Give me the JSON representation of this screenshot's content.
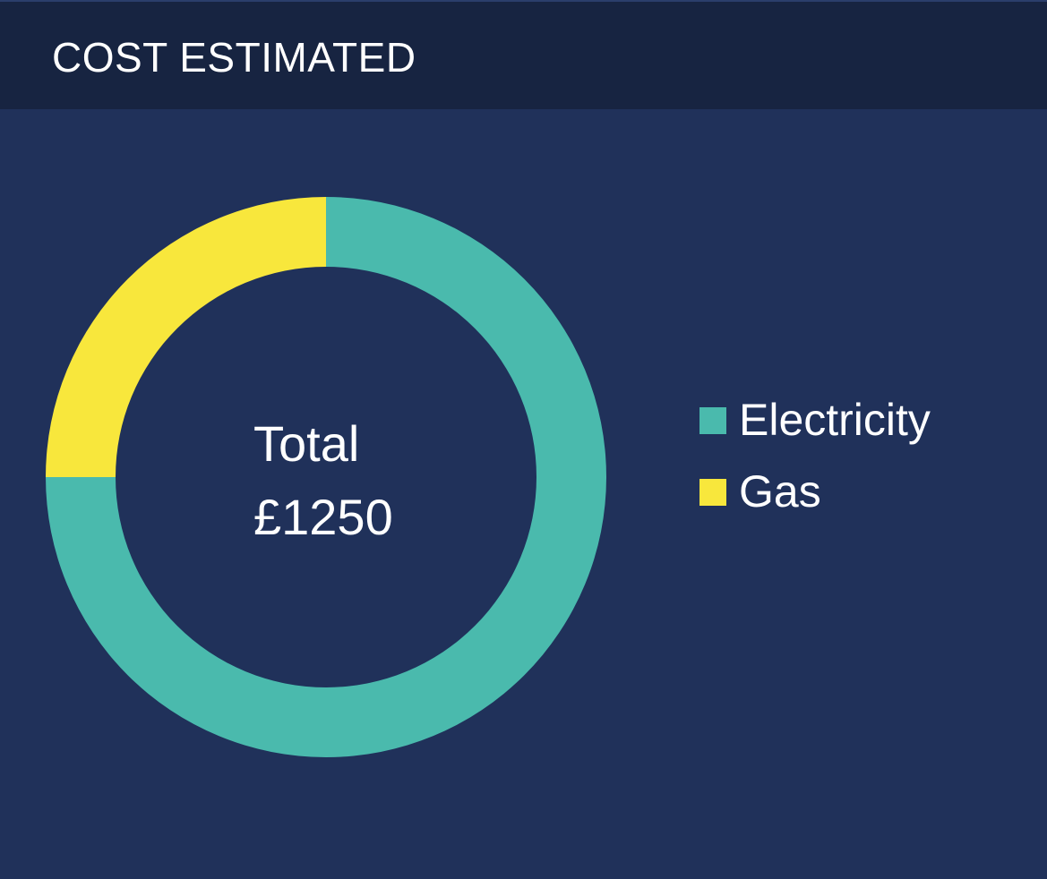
{
  "header": {
    "title": "COST ESTIMATED"
  },
  "chart_data": {
    "type": "pie",
    "donut": true,
    "title": "COST ESTIMATED",
    "center_text": [
      "Total",
      "£1250"
    ],
    "categories": [
      "Electricity",
      "Gas"
    ],
    "values": [
      937.5,
      312.5
    ],
    "colors": [
      "#4abaad",
      "#f8e73c"
    ],
    "legend": "right",
    "start_angle_deg": 0,
    "direction": "clockwise"
  },
  "colors": {
    "background": "#20315a",
    "header_background": "#172441",
    "text": "#ffffff"
  }
}
